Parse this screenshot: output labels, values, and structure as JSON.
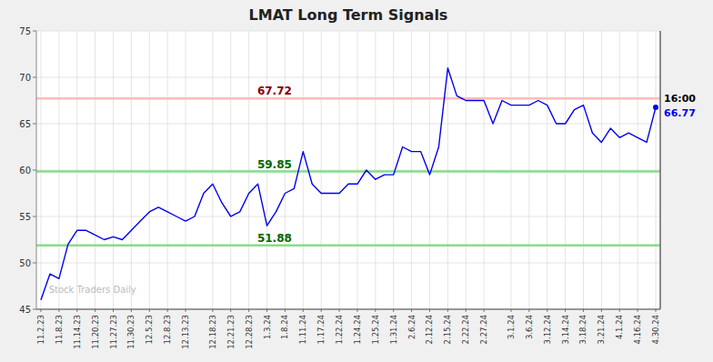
{
  "chart_data": {
    "type": "line",
    "title": "LMAT Long Term Signals",
    "watermark": "Stock Traders Daily",
    "categories": [
      "11.2.23",
      null,
      "11.8.23",
      null,
      "11.14.23",
      null,
      "11.20.23",
      null,
      "11.27.23",
      null,
      "11.30.23",
      null,
      "12.5.23",
      null,
      "12.8.23",
      null,
      "12.13.23",
      null,
      null,
      "12.18.23",
      null,
      "12.21.23",
      null,
      "12.28.23",
      null,
      "1.3.24",
      null,
      "1.8.24",
      null,
      "1.11.24",
      null,
      "1.17.24",
      null,
      "1.22.24",
      null,
      "1.24.24",
      null,
      "1.25.24",
      null,
      "1.31.24",
      null,
      "2.6.24",
      null,
      "2.12.24",
      null,
      "2.15.24",
      null,
      "2.22.24",
      null,
      "2.27.24",
      null,
      null,
      "3.1.24",
      null,
      "3.6.24",
      null,
      "3.12.24",
      null,
      "3.14.24",
      null,
      "3.18.24",
      null,
      "3.21.24",
      null,
      "4.1.24",
      null,
      "4.16.24",
      null,
      "4.30.24"
    ],
    "values": [
      46.0,
      48.8,
      48.3,
      52.0,
      53.5,
      53.5,
      53.0,
      52.5,
      52.8,
      52.5,
      53.5,
      54.5,
      55.5,
      56.0,
      55.5,
      55.0,
      54.5,
      55.0,
      57.5,
      58.5,
      56.5,
      55.0,
      55.5,
      57.5,
      58.5,
      54.0,
      55.5,
      57.5,
      58.0,
      62.0,
      58.5,
      57.5,
      57.5,
      57.5,
      58.5,
      58.5,
      60.0,
      59.0,
      59.5,
      59.5,
      62.5,
      62.0,
      62.0,
      59.5,
      62.5,
      71.0,
      68.0,
      67.5,
      67.5,
      67.5,
      65.0,
      67.5,
      67.0,
      67.0,
      67.0,
      67.5,
      67.0,
      65.0,
      65.0,
      66.5,
      67.0,
      64.0,
      63.0,
      64.5,
      63.5,
      64.0,
      63.5,
      63.0,
      66.77
    ],
    "color": "#0000ee",
    "ylim": [
      45,
      75
    ],
    "yticks": [
      45,
      50,
      55,
      60,
      65,
      70,
      75
    ],
    "grid": true,
    "reference_lines": [
      {
        "value": 67.72,
        "color": "#ffbbbb",
        "label_color": "#880000"
      },
      {
        "value": 59.85,
        "color": "#88dd88",
        "label_color": "#006600"
      },
      {
        "value": 51.88,
        "color": "#88dd88",
        "label_color": "#006600"
      }
    ],
    "end_labels": {
      "time": "16:00",
      "value": 66.77
    }
  }
}
